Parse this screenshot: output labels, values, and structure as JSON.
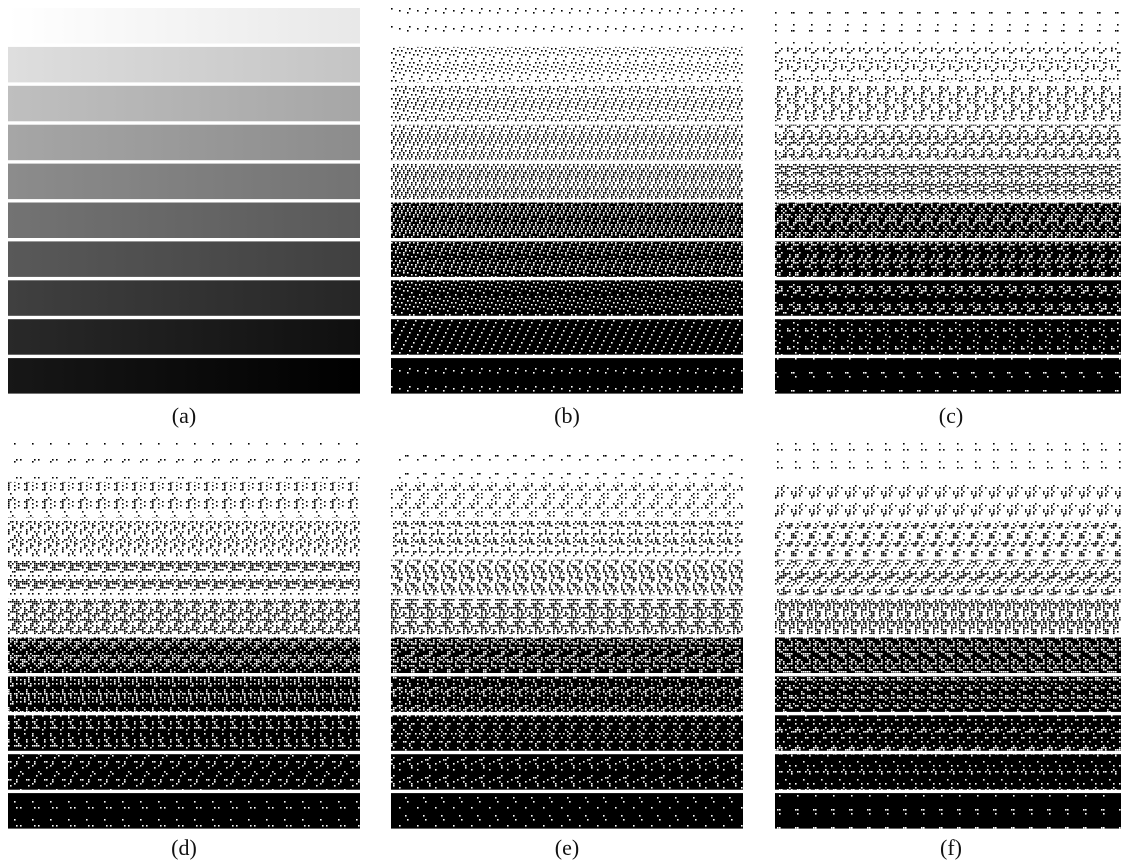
{
  "figure": {
    "captions": {
      "a": "(a)",
      "b": "(b)",
      "c": "(c)",
      "d": "(d)",
      "e": "(e)",
      "f": "(f)"
    },
    "gray_levels": [
      0.96,
      0.82,
      0.7,
      0.6,
      0.5,
      0.4,
      0.3,
      0.2,
      0.11,
      0.04
    ],
    "panel_styles": {
      "a": "continuous-gradient",
      "b": "ordered-dither",
      "c": "error-diffusion",
      "d": "error-diffusion",
      "e": "blue-noise",
      "f": "blue-noise"
    },
    "colors": {
      "ink": "#000000",
      "paper": "#ffffff"
    }
  }
}
